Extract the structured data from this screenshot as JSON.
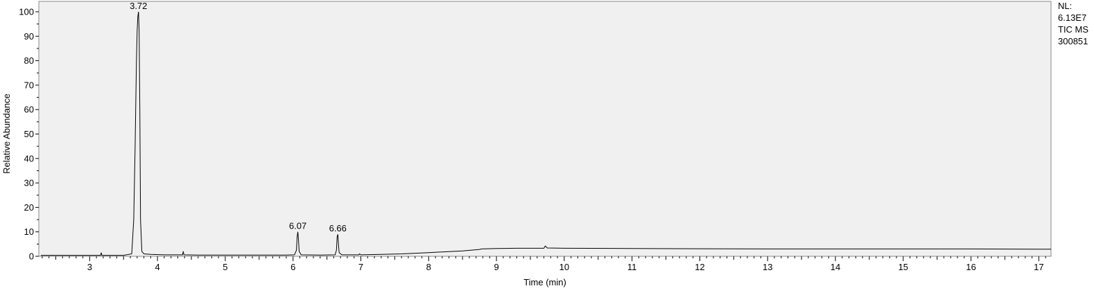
{
  "chart_data": {
    "type": "line",
    "title": "",
    "xlabel": "Time (min)",
    "ylabel": "Relative Abundance",
    "xlim": [
      2.25,
      17.18
    ],
    "ylim": [
      0,
      100
    ],
    "x_ticks": [
      3,
      4,
      5,
      6,
      7,
      8,
      9,
      10,
      11,
      12,
      13,
      14,
      15,
      16,
      17
    ],
    "y_ticks": [
      0,
      10,
      20,
      30,
      40,
      50,
      60,
      70,
      80,
      90,
      100
    ],
    "grid": false,
    "colors": {
      "plot_background": "#f0f0f0",
      "trace": "#000000"
    },
    "series": [
      {
        "x": [
          2.28,
          2.5,
          3.0,
          3.16,
          3.17,
          3.18,
          3.5,
          3.62,
          3.65,
          3.67,
          3.69,
          3.7,
          3.71,
          3.72,
          3.73,
          3.74,
          3.75,
          3.77,
          3.8,
          3.9,
          4.1,
          4.37,
          4.38,
          4.39,
          4.6,
          5.0,
          5.5,
          5.9,
          6.02,
          6.05,
          6.06,
          6.07,
          6.08,
          6.09,
          6.12,
          6.4,
          6.62,
          6.64,
          6.65,
          6.66,
          6.67,
          6.68,
          6.72,
          6.9,
          6.97,
          6.98,
          7.0,
          7.3,
          7.6,
          8.0,
          8.5,
          8.75,
          8.78,
          9.0,
          9.3,
          9.7,
          9.72,
          9.75,
          10.0,
          11.0,
          12.0,
          13.0,
          14.0,
          15.0,
          16.0,
          17.0,
          17.18
        ],
        "y": [
          0.4,
          0.4,
          0.4,
          0.4,
          1.5,
          0.4,
          0.4,
          1.0,
          15,
          45,
          80,
          92,
          98,
          100,
          92,
          60,
          15,
          2.0,
          1.0,
          0.8,
          0.6,
          0.6,
          2.0,
          0.6,
          0.5,
          0.5,
          0.5,
          0.5,
          0.6,
          2.5,
          8,
          10,
          7,
          2,
          0.6,
          0.5,
          0.6,
          2.5,
          8,
          9,
          5,
          1.5,
          0.6,
          0.6,
          0.6,
          1.0,
          0.6,
          0.8,
          1.0,
          1.5,
          2.2,
          2.8,
          3.0,
          3.2,
          3.3,
          3.3,
          4.2,
          3.4,
          3.3,
          3.2,
          3.1,
          3.0,
          3.0,
          3.0,
          3.0,
          2.9,
          2.9
        ]
      }
    ],
    "annotations": [
      {
        "x": 3.72,
        "y": 100,
        "text": "3.72"
      },
      {
        "x": 6.07,
        "y": 10,
        "text": "6.07"
      },
      {
        "x": 6.66,
        "y": 9,
        "text": "6.66"
      }
    ]
  },
  "side_info": {
    "lines": [
      "NL:",
      "6.13E7",
      "TIC  MS",
      "300851"
    ]
  }
}
